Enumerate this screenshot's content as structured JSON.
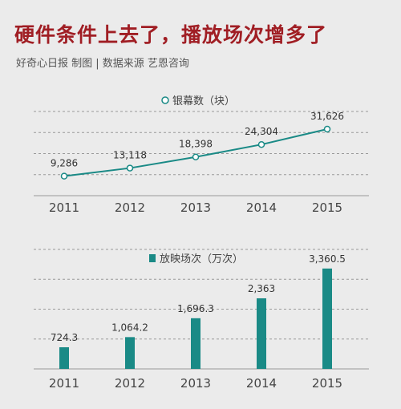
{
  "header": {
    "title": "硬件条件上去了，播放场次增多了",
    "subtitle": "好奇心日报 制图 | 数据来源 艺恩咨询"
  },
  "colors": {
    "title": "#a01e24",
    "teal": "#1a8a86",
    "grid": "#9a9a9a"
  },
  "chart_data": [
    {
      "type": "line",
      "legend": "银幕数（块）",
      "categories": [
        "2011",
        "2012",
        "2013",
        "2014",
        "2015"
      ],
      "values": [
        9286,
        13118,
        18398,
        24304,
        31626
      ],
      "labels": [
        "9,286",
        "13,118",
        "18,398",
        "24,304",
        "31,626"
      ],
      "ylim": [
        0,
        40000
      ],
      "grid": true,
      "legend_position": "top-center"
    },
    {
      "type": "bar",
      "legend": "放映场次（万次）",
      "categories": [
        "2011",
        "2012",
        "2013",
        "2014",
        "2015"
      ],
      "values": [
        724.3,
        1064.2,
        1696.3,
        2363,
        3360.5
      ],
      "labels": [
        "724.3",
        "1,064.2",
        "1,696.3",
        "2,363",
        "3,360.5"
      ],
      "ylim": [
        0,
        4000
      ],
      "grid": true,
      "legend_position": "top-center"
    }
  ]
}
